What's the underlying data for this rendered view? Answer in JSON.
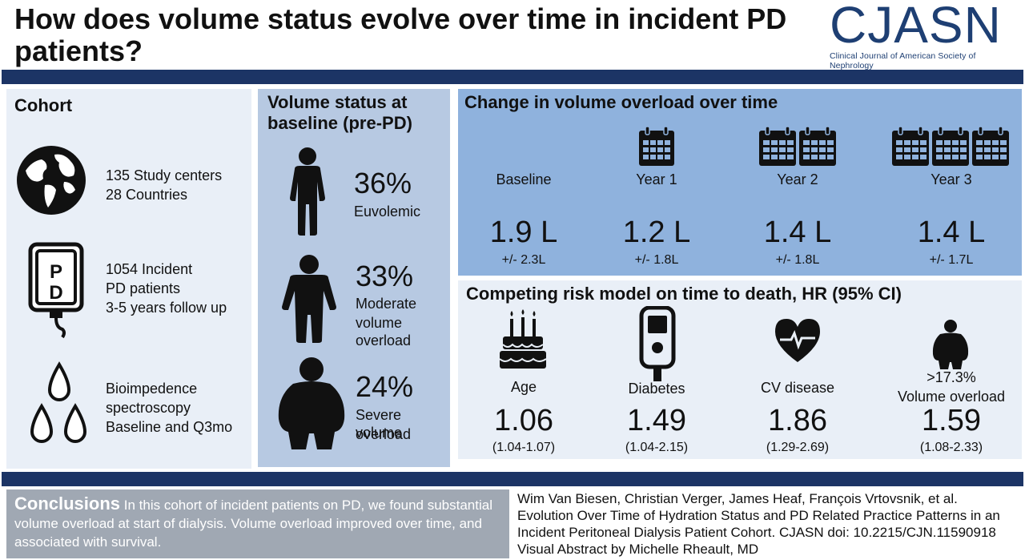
{
  "header": {
    "title": "How does volume status evolve over time in incident PD patients?",
    "logo_text": "CJASN",
    "logo_subtitle": "Clinical Journal of American Society of Nephrology"
  },
  "colors": {
    "navy": "#1c3465",
    "light_panel": "#e9eff7",
    "mid_panel": "#b7c9e2",
    "blue_panel": "#8fb2dd",
    "conclusion_bg": "#a0a8b3"
  },
  "cohort": {
    "heading": "Cohort",
    "items": [
      {
        "icon": "globe-icon",
        "line1": "135 Study centers",
        "line2": "28 Countries"
      },
      {
        "icon": "pd-bag-icon",
        "line1": "1054 Incident",
        "line2": "PD patients",
        "line3": "3-5 years follow up"
      },
      {
        "icon": "droplets-icon",
        "line1": "Bioimpedence",
        "line2": "spectroscopy",
        "line3": "Baseline and Q3mo"
      }
    ]
  },
  "baseline": {
    "heading_line1": "Volume status at",
    "heading_line2": "baseline (pre-PD)",
    "items": [
      {
        "icon": "person-slim-icon",
        "pct": "36%",
        "label1": "Euvolemic",
        "label2": ""
      },
      {
        "icon": "person-medium-icon",
        "pct": "33%",
        "label1": "Moderate",
        "label2": "volume overload"
      },
      {
        "icon": "person-large-icon",
        "pct": "24%",
        "label1": "Severe volume",
        "label2": "overload"
      }
    ]
  },
  "change": {
    "heading": "Change in volume overload over time",
    "columns": [
      {
        "label": "Baseline",
        "value": "1.9 L",
        "sd": "+/- 2.3L",
        "calendars": 0
      },
      {
        "label": "Year 1",
        "value": "1.2 L",
        "sd": "+/- 1.8L",
        "calendars": 1
      },
      {
        "label": "Year 2",
        "value": "1.4 L",
        "sd": "+/- 1.8L",
        "calendars": 2
      },
      {
        "label": "Year 3",
        "value": "1.4 L",
        "sd": "+/- 1.7L",
        "calendars": 3
      }
    ]
  },
  "risk": {
    "heading": "Competing risk model on time to death, HR (95% CI)",
    "columns": [
      {
        "icon": "birthday-cake-icon",
        "label1": "",
        "label2": "Age",
        "hr": "1.06",
        "ci": "(1.04-1.07)"
      },
      {
        "icon": "glucometer-icon",
        "label1": "",
        "label2": "Diabetes",
        "hr": "1.49",
        "ci": "(1.04-2.15)"
      },
      {
        "icon": "heart-pulse-icon",
        "label1": "",
        "label2": "CV disease",
        "hr": "1.86",
        "ci": "(1.29-2.69)"
      },
      {
        "icon": "person-overweight-icon",
        "label1": ">17.3%",
        "label2": "Volume overload",
        "hr": "1.59",
        "ci": "(1.08-2.33)"
      }
    ]
  },
  "conclusion": {
    "heading": "Conclusions",
    "text": "In this cohort of incident patients on PD, we found substantial volume overload at start of dialysis. Volume overload improved over time, and associated with survival."
  },
  "citation": {
    "line1": "Wim Van Biesen, Christian Verger, James Heaf, François Vrtovsnik, et al.",
    "line2": "Evolution Over Time of Hydration Status and PD Related Practice Patterns in an",
    "line3": "Incident Peritoneal Dialysis Patient Cohort. CJASN doi: 10.2215/CJN.11590918",
    "line4": "Visual Abstract by Michelle Rheault, MD"
  }
}
